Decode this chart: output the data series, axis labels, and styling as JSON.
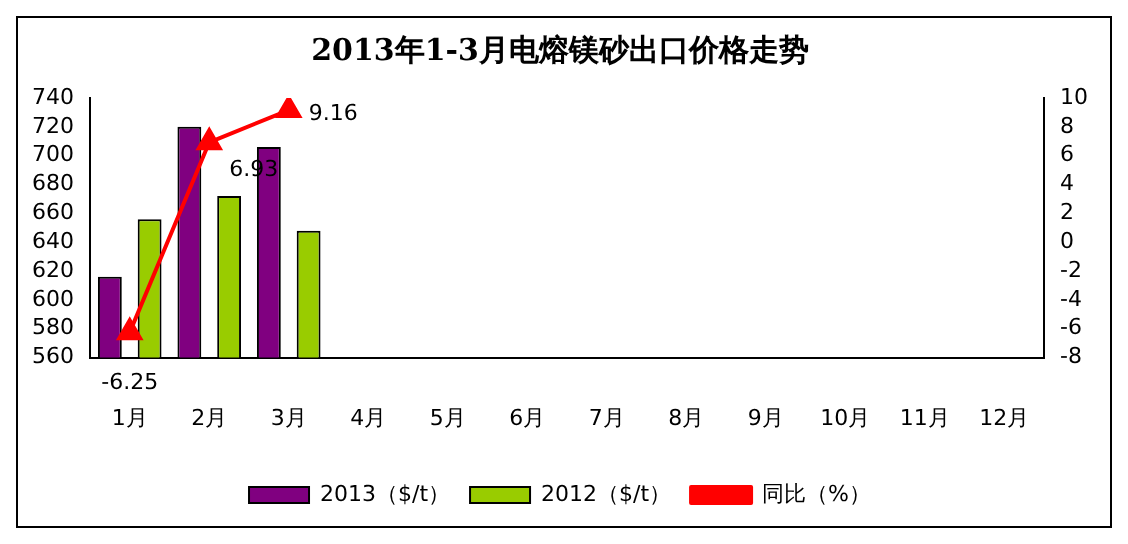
{
  "chart_data": {
    "type": "bar",
    "title": "2013年1-3月电熔镁砂出口价格走势",
    "categories": [
      "1月",
      "2月",
      "3月",
      "4月",
      "5月",
      "6月",
      "7月",
      "8月",
      "9月",
      "10月",
      "11月",
      "12月"
    ],
    "series": [
      {
        "name": "2013（$/t）",
        "color": "#800080",
        "values": [
          616,
          720,
          706,
          null,
          null,
          null,
          null,
          null,
          null,
          null,
          null,
          null
        ]
      },
      {
        "name": "2012（$/t）",
        "color": "#99cc00",
        "values": [
          656,
          672,
          648,
          null,
          null,
          null,
          null,
          null,
          null,
          null,
          null,
          null
        ]
      },
      {
        "name": "同比（%）",
        "type": "line",
        "axis": "y2",
        "color": "#ff0000",
        "marker": "triangle",
        "values": [
          -6.25,
          6.93,
          9.16,
          null,
          null,
          null,
          null,
          null,
          null,
          null,
          null,
          null
        ],
        "value_labels": [
          "-6.25",
          "6.93",
          "9.16",
          null,
          null,
          null,
          null,
          null,
          null,
          null,
          null,
          null
        ]
      }
    ],
    "ylim": [
      560,
      740
    ],
    "yticks": [
      560,
      580,
      600,
      620,
      640,
      660,
      680,
      700,
      720,
      740
    ],
    "y2lim": [
      -8,
      10
    ],
    "y2ticks": [
      -8,
      -6,
      -4,
      -2,
      0,
      2,
      4,
      6,
      8,
      10
    ],
    "grid": false,
    "legend": "bottom"
  }
}
